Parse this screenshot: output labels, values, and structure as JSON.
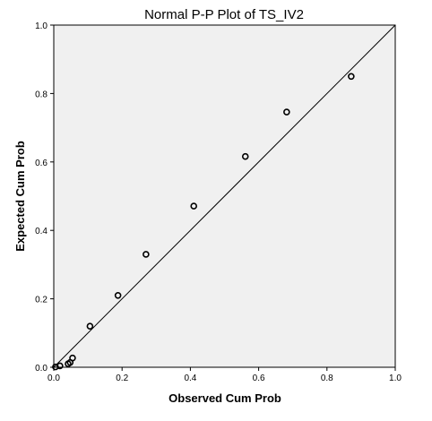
{
  "chart_data": {
    "type": "scatter",
    "title": "Normal P-P Plot of TS_IV2",
    "xlabel": "Observed Cum Prob",
    "ylabel": "Expected Cum Prob",
    "xlim": [
      0.0,
      1.0
    ],
    "ylim": [
      0.0,
      1.0
    ],
    "x_ticks": [
      "0.0",
      "0.2",
      "0.4",
      "0.6",
      "0.8",
      "1.0"
    ],
    "y_ticks": [
      "0.0",
      "0.2",
      "0.4",
      "0.6",
      "0.8",
      "1.0"
    ],
    "grid": false,
    "reference_line": {
      "from": [
        0.0,
        0.0
      ],
      "to": [
        1.0,
        1.0
      ]
    },
    "points": [
      {
        "x": 0.005,
        "y": 0.001
      },
      {
        "x": 0.018,
        "y": 0.004
      },
      {
        "x": 0.042,
        "y": 0.01
      },
      {
        "x": 0.048,
        "y": 0.014
      },
      {
        "x": 0.055,
        "y": 0.027
      },
      {
        "x": 0.106,
        "y": 0.12
      },
      {
        "x": 0.188,
        "y": 0.21
      },
      {
        "x": 0.27,
        "y": 0.33
      },
      {
        "x": 0.41,
        "y": 0.471
      },
      {
        "x": 0.561,
        "y": 0.616
      },
      {
        "x": 0.682,
        "y": 0.746
      },
      {
        "x": 0.871,
        "y": 0.85
      }
    ],
    "colors": {
      "plot_background": "#f0f0f0",
      "axis": "#000000",
      "reference_line": "#000000",
      "marker_stroke": "#000000"
    }
  }
}
